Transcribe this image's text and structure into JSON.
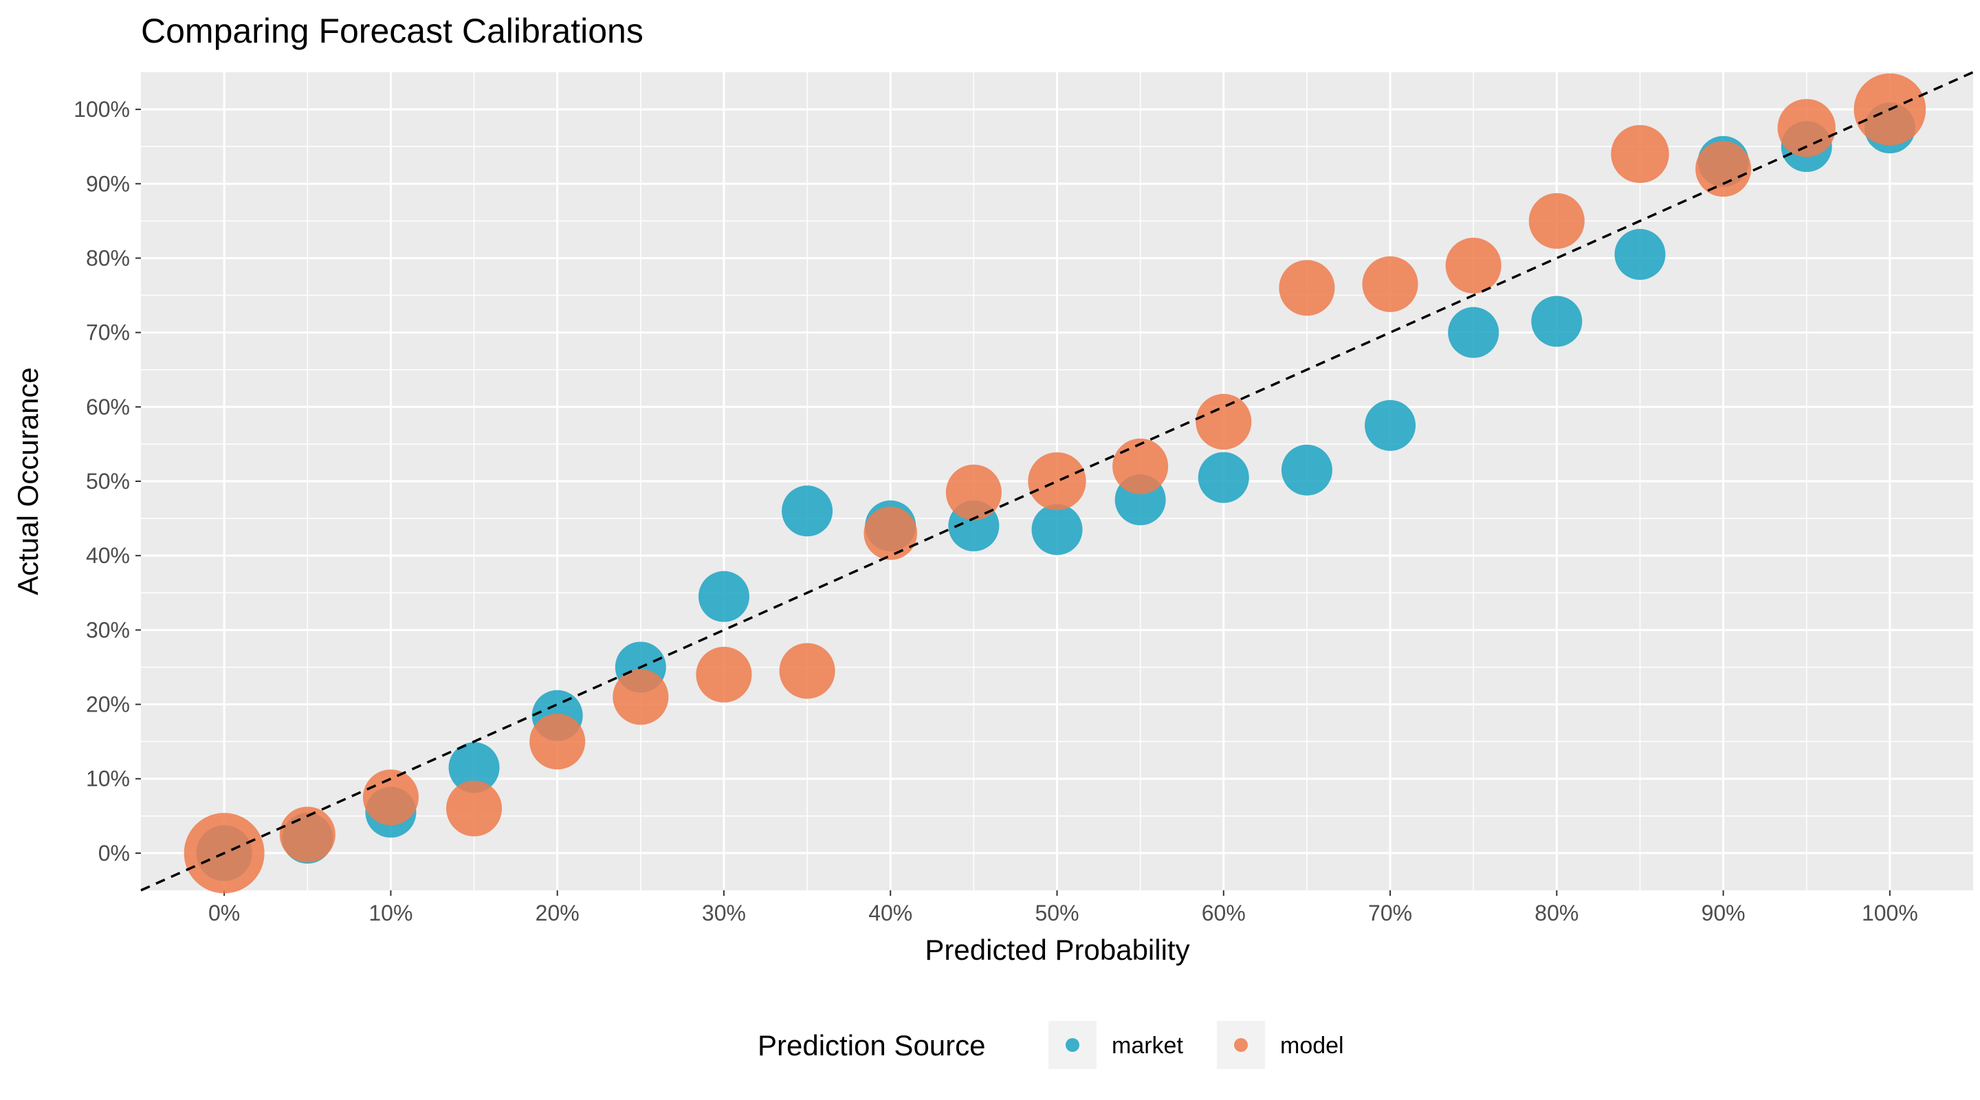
{
  "chart_data": {
    "type": "scatter",
    "title": "Comparing Forecast Calibrations",
    "xlabel": "Predicted Probability",
    "ylabel": "Actual Occurance",
    "xlim": [
      -0.05,
      1.05
    ],
    "ylim": [
      -0.05,
      1.05
    ],
    "grid": true,
    "legend_position": "bottom",
    "legend_title": "Prediction Source",
    "reference_line": "y = x (dashed)",
    "x_ticks": [
      "0%",
      "10%",
      "20%",
      "30%",
      "40%",
      "50%",
      "60%",
      "70%",
      "80%",
      "90%",
      "100%"
    ],
    "y_ticks": [
      "0%",
      "10%",
      "20%",
      "30%",
      "40%",
      "50%",
      "60%",
      "70%",
      "80%",
      "90%",
      "100%"
    ],
    "series": [
      {
        "name": "market",
        "color": "#1ca3c3",
        "x": [
          0.0,
          0.05,
          0.1,
          0.15,
          0.2,
          0.25,
          0.3,
          0.35,
          0.4,
          0.45,
          0.5,
          0.55,
          0.6,
          0.65,
          0.7,
          0.75,
          0.8,
          0.85,
          0.9,
          0.95,
          1.0
        ],
        "y": [
          0.0,
          0.02,
          0.055,
          0.115,
          0.185,
          0.25,
          0.345,
          0.46,
          0.44,
          0.44,
          0.435,
          0.475,
          0.505,
          0.515,
          0.575,
          0.7,
          0.715,
          0.805,
          0.93,
          0.95,
          0.975
        ],
        "size": [
          1.2,
          1,
          1,
          1,
          1,
          1,
          1,
          1,
          1,
          1,
          1,
          1,
          1,
          1,
          1,
          1,
          1,
          1,
          1,
          1,
          1
        ]
      },
      {
        "name": "model",
        "color": "#ee7b4c",
        "x": [
          0.0,
          0.05,
          0.1,
          0.15,
          0.2,
          0.25,
          0.3,
          0.35,
          0.4,
          0.45,
          0.5,
          0.55,
          0.6,
          0.65,
          0.7,
          0.75,
          0.8,
          0.85,
          0.9,
          0.95,
          1.0
        ],
        "y": [
          0.0,
          0.025,
          0.075,
          0.06,
          0.15,
          0.21,
          0.24,
          0.245,
          0.43,
          0.485,
          0.5,
          0.52,
          0.58,
          0.76,
          0.765,
          0.79,
          0.85,
          0.94,
          0.92,
          0.975,
          1.0
        ],
        "size": [
          2.5,
          1.2,
          1.2,
          1.2,
          1.2,
          1.2,
          1.2,
          1.2,
          1.1,
          1.2,
          1.3,
          1.2,
          1.2,
          1.2,
          1.2,
          1.2,
          1.2,
          1.3,
          1.2,
          1.3,
          2.0
        ]
      }
    ]
  }
}
